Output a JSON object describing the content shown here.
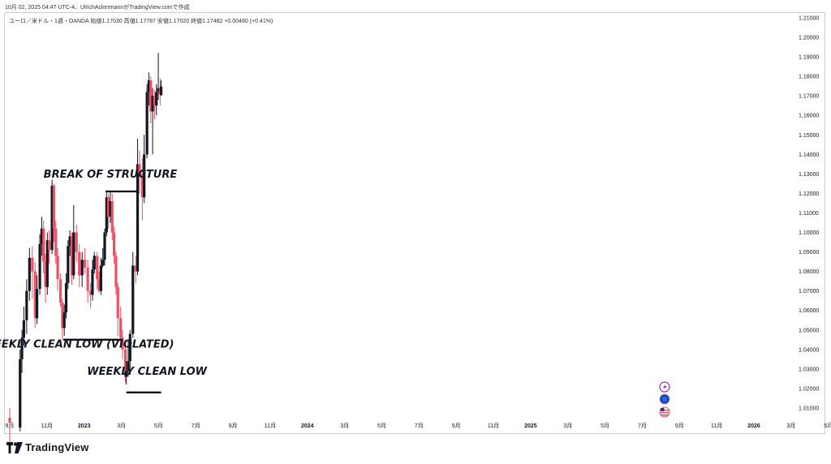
{
  "header": {
    "caption": "10月 02, 2025 04:47 UTC-4、UlrichAckermannがTradingView.comで作成"
  },
  "symbol_line": "ユーロ／米ドル・1週・OANDA  始値1.17030  高値1.17787  安値1.17020  終値1.17482  +0.00480 (+0.41%)",
  "brand": {
    "name": "TradingView",
    "logo_icon": "tradingview-logo-icon"
  },
  "colors": {
    "up": "#131722",
    "down": "#ef4f64",
    "line": "#000000",
    "axis_text": "#131722"
  },
  "side_icons": [
    "lightning-icon",
    "currency-circle-icon",
    "us-flag-icon"
  ],
  "chart_data": {
    "type": "candlestick",
    "title": "",
    "x_ticks": [
      "9月",
      "11月",
      "2023",
      "3月",
      "5月",
      "7月",
      "9月",
      "11月",
      "2024",
      "3月",
      "5月",
      "7月",
      "9月",
      "11月",
      "2025",
      "3月",
      "5月",
      "7月",
      "9月",
      "11月",
      "2026",
      "3月",
      "5月"
    ],
    "y_ticks": [
      "1.21000",
      "1.20000",
      "1.19000",
      "1.18000",
      "1.17000",
      "1.16000",
      "1.15000",
      "1.14000",
      "1.13000",
      "1.12000",
      "1.11000",
      "1.10000",
      "1.09000",
      "1.08000",
      "1.07000",
      "1.06000",
      "1.05000",
      "1.04000",
      "1.03000",
      "1.02000",
      "1.01000"
    ],
    "ylim": [
      1.0,
      1.21
    ],
    "x_axis_start": "2022-08-29",
    "candles": [
      [
        "2022-08-29",
        1.005,
        1.0025,
        0.99,
        1.01
      ],
      [
        "2022-11-14",
        1.0,
        1.035,
        0.998,
        1.04
      ],
      [
        "2022-11-28",
        1.035,
        1.046,
        1.028,
        1.05
      ],
      [
        "2022-12-12",
        1.046,
        1.055,
        1.042,
        1.062
      ],
      [
        "2023-01-02",
        1.055,
        1.07,
        1.048,
        1.076
      ],
      [
        "2023-01-23",
        1.07,
        1.087,
        1.065,
        1.092
      ],
      [
        "2023-02-13",
        1.087,
        1.08,
        1.066,
        1.093
      ],
      [
        "2023-03-06",
        1.08,
        1.056,
        1.051,
        1.085
      ],
      [
        "2023-03-20",
        1.056,
        1.071,
        1.053,
        1.078
      ],
      [
        "2023-04-10",
        1.071,
        1.094,
        1.068,
        1.099
      ],
      [
        "2023-04-24",
        1.094,
        1.102,
        1.088,
        1.108
      ],
      [
        "2023-05-08",
        1.102,
        1.085,
        1.079,
        1.106
      ],
      [
        "2023-05-22",
        1.085,
        1.072,
        1.064,
        1.089
      ],
      [
        "2023-06-05",
        1.072,
        1.096,
        1.068,
        1.1
      ],
      [
        "2023-06-19",
        1.096,
        1.091,
        1.084,
        1.101
      ],
      [
        "2023-07-10",
        1.091,
        1.124,
        1.089,
        1.127
      ],
      [
        "2023-07-24",
        1.124,
        1.102,
        1.095,
        1.125
      ],
      [
        "2023-08-07",
        1.102,
        1.088,
        1.084,
        1.106
      ],
      [
        "2023-08-21",
        1.088,
        1.076,
        1.07,
        1.092
      ],
      [
        "2023-09-11",
        1.076,
        1.064,
        1.062,
        1.079
      ],
      [
        "2023-09-25",
        1.064,
        1.051,
        1.045,
        1.066
      ],
      [
        "2023-10-09",
        1.051,
        1.059,
        1.047,
        1.063
      ],
      [
        "2023-10-23",
        1.059,
        1.074,
        1.056,
        1.079
      ],
      [
        "2023-11-06",
        1.074,
        1.093,
        1.071,
        1.096
      ],
      [
        "2023-11-20",
        1.093,
        1.098,
        1.088,
        1.101
      ],
      [
        "2023-12-04",
        1.098,
        1.078,
        1.073,
        1.1
      ],
      [
        "2023-12-18",
        1.078,
        1.1,
        1.076,
        1.114
      ],
      [
        "2024-01-08",
        1.1,
        1.09,
        1.085,
        1.104
      ],
      [
        "2024-01-29",
        1.09,
        1.078,
        1.072,
        1.094
      ],
      [
        "2024-02-19",
        1.078,
        1.086,
        1.072,
        1.09
      ],
      [
        "2024-03-11",
        1.086,
        1.082,
        1.079,
        1.092
      ],
      [
        "2024-04-01",
        1.082,
        1.07,
        1.064,
        1.086
      ],
      [
        "2024-04-22",
        1.07,
        1.068,
        1.061,
        1.074
      ],
      [
        "2024-05-06",
        1.068,
        1.081,
        1.065,
        1.086
      ],
      [
        "2024-05-20",
        1.081,
        1.088,
        1.079,
        1.09
      ],
      [
        "2024-06-10",
        1.088,
        1.076,
        1.071,
        1.09
      ],
      [
        "2024-06-24",
        1.076,
        1.07,
        1.069,
        1.08
      ],
      [
        "2024-07-08",
        1.07,
        1.083,
        1.068,
        1.087
      ],
      [
        "2024-07-22",
        1.083,
        1.086,
        1.082,
        1.092
      ],
      [
        "2024-08-05",
        1.086,
        1.1,
        1.083,
        1.102
      ],
      [
        "2024-08-19",
        1.1,
        1.118,
        1.098,
        1.121
      ],
      [
        "2024-09-02",
        1.118,
        1.108,
        1.102,
        1.12
      ],
      [
        "2024-09-16",
        1.108,
        1.116,
        1.105,
        1.121
      ],
      [
        "2024-09-30",
        1.116,
        1.1,
        1.096,
        1.12
      ],
      [
        "2024-10-14",
        1.1,
        1.088,
        1.084,
        1.103
      ],
      [
        "2024-10-28",
        1.088,
        1.072,
        1.068,
        1.09
      ],
      [
        "2024-11-11",
        1.072,
        1.056,
        1.047,
        1.074
      ],
      [
        "2024-12-02",
        1.056,
        1.046,
        1.041,
        1.062
      ],
      [
        "2024-12-16",
        1.046,
        1.04,
        1.035,
        1.05
      ],
      [
        "2025-01-06",
        1.04,
        1.026,
        1.023,
        1.045
      ],
      [
        "2025-01-13",
        1.026,
        1.029,
        1.022,
        1.034
      ],
      [
        "2025-01-27",
        1.029,
        1.034,
        1.026,
        1.045
      ],
      [
        "2025-02-10",
        1.034,
        1.048,
        1.03,
        1.05
      ],
      [
        "2025-03-03",
        1.048,
        1.083,
        1.046,
        1.09
      ],
      [
        "2025-03-24",
        1.083,
        1.08,
        1.074,
        1.088
      ],
      [
        "2025-04-07",
        1.08,
        1.135,
        1.078,
        1.148
      ],
      [
        "2025-04-21",
        1.135,
        1.13,
        1.12,
        1.142
      ],
      [
        "2025-05-12",
        1.13,
        1.118,
        1.106,
        1.138
      ],
      [
        "2025-05-26",
        1.118,
        1.14,
        1.115,
        1.15
      ],
      [
        "2025-06-16",
        1.14,
        1.172,
        1.138,
        1.176
      ],
      [
        "2025-06-30",
        1.172,
        1.178,
        1.165,
        1.182
      ],
      [
        "2025-07-14",
        1.178,
        1.162,
        1.156,
        1.18
      ],
      [
        "2025-07-28",
        1.162,
        1.17,
        1.14,
        1.174
      ],
      [
        "2025-08-11",
        1.17,
        1.165,
        1.158,
        1.173
      ],
      [
        "2025-08-25",
        1.165,
        1.172,
        1.16,
        1.176
      ],
      [
        "2025-09-08",
        1.172,
        1.174,
        1.168,
        1.192
      ],
      [
        "2025-09-22",
        1.174,
        1.171,
        1.165,
        1.179
      ],
      [
        "2025-09-29",
        1.1703,
        1.1748,
        1.1702,
        1.1779
      ]
    ],
    "lines": [
      {
        "name": "break-of-structure",
        "from": [
          "2024-08-12",
          1.121
        ],
        "to": [
          "2025-04-14",
          1.121
        ]
      },
      {
        "name": "weekly-clean-low-violated",
        "from": [
          "2023-10-02",
          1.045
        ],
        "to": [
          "2024-12-16",
          1.045
        ]
      },
      {
        "name": "weekly-clean-low",
        "from": [
          "2025-01-13",
          1.018
        ],
        "to": [
          "2025-09-29",
          1.018
        ]
      }
    ],
    "annotations": [
      {
        "text": "BREAK OF STRUCTURE",
        "at": [
          "2024-09-16",
          1.128
        ]
      },
      {
        "text": "WEEKLY CLEAN LOW (VIOLATED)",
        "at": [
          "2024-01-22",
          1.041
        ]
      },
      {
        "text": "WEEKLY CLEAN LOW",
        "at": [
          "2025-06-16",
          1.027
        ]
      }
    ]
  }
}
